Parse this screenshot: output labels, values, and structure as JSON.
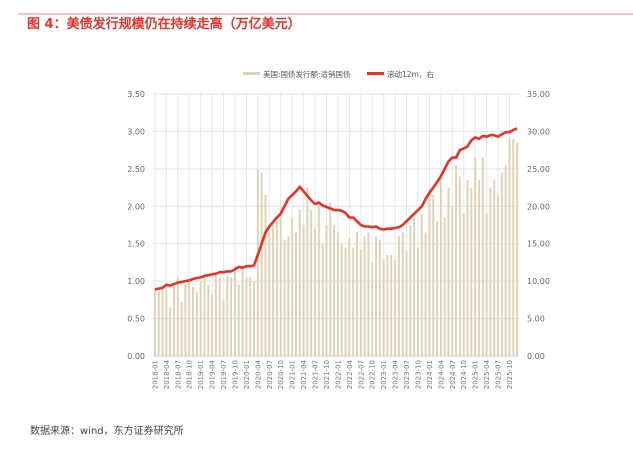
{
  "title": "图 4：美债发行规模仍在持续走高（万亿美元）",
  "source": "数据来源：wind，东方证券研究所",
  "colors": {
    "accent": "#e8312a",
    "bar": "#dcd2b6",
    "grid": "#e2e2e2"
  },
  "chart_data": {
    "type": "bar+line",
    "legend": [
      "美国:国债发行额:适销国债",
      "滚动12m，右"
    ],
    "legend_position": "top-center",
    "left_axis": {
      "ylim": [
        0,
        3.5
      ],
      "ticks": [
        "0.00",
        "0.50",
        "1.00",
        "1.50",
        "2.00",
        "2.50",
        "3.00",
        "3.50"
      ]
    },
    "right_axis": {
      "ylim": [
        0,
        35
      ],
      "ticks": [
        "0.00",
        "5.00",
        "10.00",
        "15.00",
        "20.00",
        "25.00",
        "30.00",
        "35.00"
      ]
    },
    "x_ticks": [
      "2018-01",
      "2018-04",
      "2018-07",
      "2018-10",
      "2019-01",
      "2019-04",
      "2019-07",
      "2019-10",
      "2020-01",
      "2020-04",
      "2020-07",
      "2020-10",
      "2021-01",
      "2021-04",
      "2021-07",
      "2021-10",
      "2022-01",
      "2022-04",
      "2022-07",
      "2022-10",
      "2023-01",
      "2023-04",
      "2023-07",
      "2023-10",
      "2024-01",
      "2024-04",
      "2024-07",
      "2024-10",
      "2025-01",
      "2025-04",
      "2025-07",
      "2025-10"
    ],
    "start_month": "2018-01",
    "series": [
      {
        "name": "美国:国债发行额:适销国债",
        "axis": "left",
        "type": "bar",
        "values": [
          0.88,
          0.85,
          0.95,
          0.98,
          0.65,
          0.98,
          1.05,
          0.72,
          0.95,
          1.0,
          0.92,
          0.85,
          1.0,
          1.05,
          0.95,
          0.82,
          1.08,
          1.05,
          0.75,
          1.07,
          1.05,
          1.2,
          0.95,
          1.2,
          1.05,
          1.05,
          1.0,
          2.5,
          2.45,
          2.15,
          1.65,
          1.75,
          1.8,
          2.0,
          1.55,
          1.6,
          1.85,
          1.65,
          1.95,
          1.75,
          2.25,
          1.95,
          1.7,
          2.05,
          1.5,
          1.75,
          2.05,
          1.75,
          1.65,
          1.5,
          1.45,
          1.58,
          1.45,
          1.65,
          1.42,
          1.6,
          1.65,
          1.25,
          1.6,
          1.55,
          1.3,
          1.35,
          1.35,
          1.28,
          1.6,
          1.65,
          1.4,
          1.75,
          1.85,
          1.45,
          1.9,
          1.65,
          2.2,
          2.15,
          1.8,
          2.4,
          1.85,
          2.25,
          2.0,
          2.55,
          2.4,
          1.9,
          2.35,
          2.25,
          2.65,
          2.35,
          2.65,
          1.9,
          2.25,
          2.35,
          2.15,
          2.45,
          2.55,
          2.9,
          2.9,
          2.85
        ]
      },
      {
        "name": "滚动12m，右",
        "axis": "right",
        "type": "line",
        "values": [
          8.9,
          9.0,
          9.1,
          9.5,
          9.4,
          9.6,
          9.8,
          9.9,
          10.0,
          10.1,
          10.3,
          10.4,
          10.5,
          10.7,
          10.8,
          10.9,
          11.0,
          11.2,
          11.2,
          11.3,
          11.3,
          11.6,
          11.9,
          11.8,
          12.0,
          12.0,
          12.1,
          13.5,
          15.0,
          16.5,
          17.3,
          17.9,
          18.5,
          19.0,
          20.0,
          21.0,
          21.5,
          22.0,
          22.6,
          22.0,
          21.4,
          20.8,
          20.3,
          20.5,
          20.1,
          19.9,
          19.7,
          19.5,
          19.5,
          19.4,
          19.1,
          18.5,
          18.5,
          18.0,
          17.5,
          17.3,
          17.3,
          17.2,
          17.3,
          17.0,
          16.9,
          17.0,
          17.0,
          17.1,
          17.2,
          17.5,
          18.0,
          18.5,
          19.0,
          19.5,
          20.0,
          21.0,
          21.8,
          22.5,
          23.2,
          24.0,
          25.0,
          26.0,
          26.5,
          26.5,
          27.5,
          27.7,
          28.0,
          28.8,
          29.2,
          29.0,
          29.4,
          29.3,
          29.5,
          29.5,
          29.3,
          29.6,
          29.9,
          29.9,
          30.2,
          30.4
        ]
      }
    ]
  }
}
